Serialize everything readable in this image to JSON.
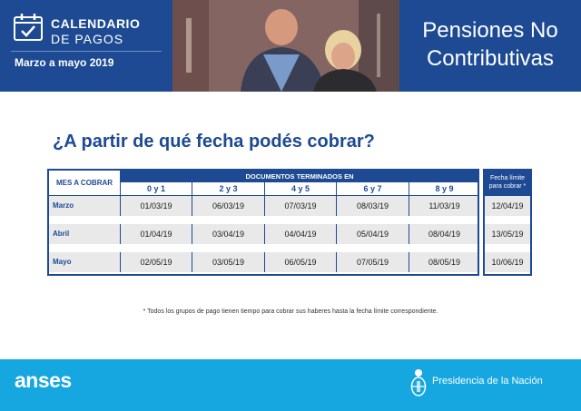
{
  "header": {
    "calendar_title_line1": "CALENDARIO",
    "calendar_title_line2": "DE PAGOS",
    "date_range": "Marzo a mayo 2019",
    "program_line1": "Pensiones No",
    "program_line2": "Contributivas",
    "icon": "calendar-check-icon"
  },
  "question": "¿A partir de qué fecha podés cobrar?",
  "table": {
    "month_header": "MES A COBRAR",
    "documents_header": "DOCUMENTOS TERMINADOS EN",
    "columns": [
      "0 y 1",
      "2 y 3",
      "4 y 5",
      "6 y 7",
      "8 y 9"
    ],
    "limit_header_line1": "Fecha límite",
    "limit_header_line2": "para cobrar *",
    "rows": [
      {
        "month": "Marzo",
        "dates": [
          "01/03/19",
          "06/03/19",
          "07/03/19",
          "08/03/19",
          "11/03/19"
        ],
        "limit": "12/04/19"
      },
      {
        "month": "Abril",
        "dates": [
          "01/04/19",
          "03/04/19",
          "04/04/19",
          "05/04/19",
          "08/04/19"
        ],
        "limit": "13/05/19"
      },
      {
        "month": "Mayo",
        "dates": [
          "02/05/19",
          "03/05/19",
          "06/05/19",
          "07/05/19",
          "08/05/19"
        ],
        "limit": "10/06/19"
      }
    ]
  },
  "footnote": "* Todos los grupos de pago tienen tiempo para cobrar sus haberes hasta la fecha límite correspondiente.",
  "footer": {
    "brand": "anses",
    "government": "Presidencia de la Nación",
    "emblem": "coat-of-arms-icon"
  },
  "colors": {
    "navy": "#1d4a93",
    "cyan": "#16a7e0",
    "row_gray": "#e9e9e9"
  }
}
